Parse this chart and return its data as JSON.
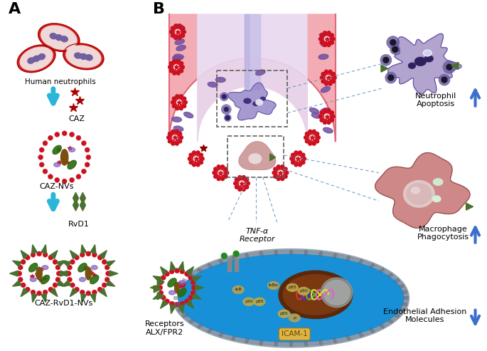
{
  "bg_color": "#ffffff",
  "panel_A_label": "A",
  "panel_B_label": "B",
  "label_human_neutrophils": "Human neutrophils",
  "label_CAZ": "CAZ",
  "label_CAZ_NVs": "CAZ-NVs",
  "label_RvD1": "RvD1",
  "label_CAZ_RvD1_NVs": "CAZ-RvD1-NVs",
  "label_neutrophil_apoptosis": "Neutrophil\nApoptosis",
  "label_macrophage_phagocytosis": "Macrophage\nPhagocytosis",
  "label_endothelial_adhesion": "Endothelial Adhesion\nMolecules",
  "label_TNF": "TNF-α\nReceptor",
  "label_ICAM1": "ICAM-1",
  "label_receptors": "Receptors\nALX/FPR2",
  "arrow_color_cyan": "#29B6D8",
  "arrow_color_blue": "#3B6FCC",
  "rbc_color": "#D42020",
  "rbc_fill_color": "#F0D8D8",
  "nucleus_purple": "#7060A0",
  "nv_outer_color": "#CC1020",
  "nv_star_color": "#CC1020",
  "rvd1_color": "#4A7030",
  "vessel_wall_color": "#F4A8B0",
  "vessel_wall_dark": "#E06878",
  "vessel_lumen_color": "#E8D8F0",
  "vessel_lumen_light": "#F0E8F8",
  "airway_color": "#C8C0E8",
  "endothelial_color": "#7050A0",
  "cell_blue": "#2090D0",
  "cell_membrane_gray": "#8090A0",
  "nucleus_brown_dark": "#5A2808",
  "nucleus_brown": "#7A3810",
  "dashed_box_color": "#606060",
  "macrophage_color": "#C87878",
  "apoptosis_color": "#A898C8",
  "dot_line_color": "#6090C0",
  "orange_arrow": "#CC6600",
  "icam_bg": "#D4A040",
  "ikb_color": "#B09060"
}
